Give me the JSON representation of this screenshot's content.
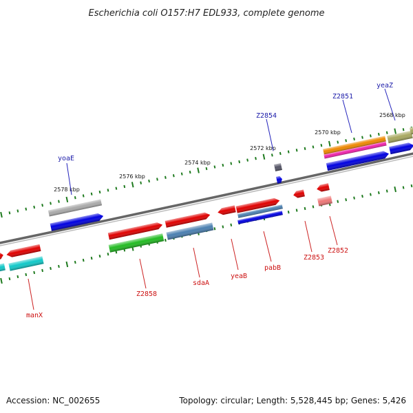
{
  "title": "Escherichia coli O157:H7 EDL933, complete genome",
  "footer": {
    "accession": "Accession: NC_002655",
    "topology": "Topology: circular; Length: 5,528,445 bp; Genes: 5,426"
  },
  "ticks": [
    "2568 kbp",
    "2570 kbp",
    "2572 kbp",
    "2574 kbp",
    "2576 kbp",
    "2578 kbp"
  ],
  "labels_top": [
    "yeaZ",
    "Z2851",
    "Z2854",
    "yoaE"
  ],
  "labels_bottom": [
    "Z2852",
    "Z2853",
    "pabB",
    "yeaB",
    "sdaA",
    "Z2858",
    "manX"
  ],
  "colors": {
    "backbone": "#777777",
    "label_top": "#1a1aa8",
    "label_bottom": "#cc1111",
    "tick": "#1e7a1e",
    "gene_red": "#e00000",
    "gene_blue": "#0000e0",
    "gene_grey": "#aaaaaa",
    "gene_green": "#22bb22",
    "gene_steel": "#4a7fb0",
    "gene_cyan": "#10c8c8",
    "gene_orange": "#ee8800",
    "gene_magenta": "#ee22aa",
    "gene_olive": "#a8a860",
    "gene_pink": "#ee7777",
    "gene_darkgrey": "#555566"
  }
}
